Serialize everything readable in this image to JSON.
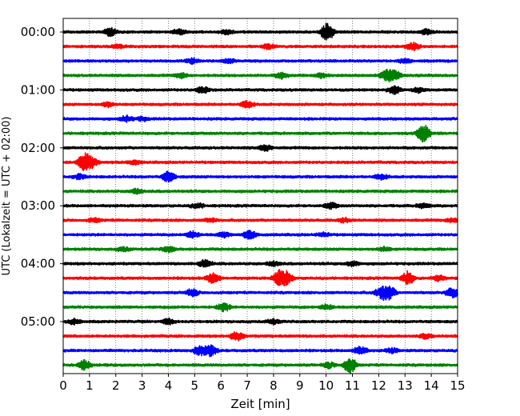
{
  "chart_data": {
    "type": "line",
    "xlabel": "Zeit  [min]",
    "ylabel": "UTC (Lokalzeit = UTC + 02:00)",
    "xlim": [
      0,
      15
    ],
    "x_ticks": [
      "0",
      "1",
      "2",
      "3",
      "4",
      "5",
      "6",
      "7",
      "8",
      "9",
      "10",
      "11",
      "12",
      "13",
      "14",
      "15"
    ],
    "y_tick_labels": [
      "00:00",
      "01:00",
      "02:00",
      "03:00",
      "04:00",
      "05:00"
    ],
    "y_tick_rows": [
      0,
      4,
      8,
      12,
      16,
      20
    ],
    "grid": "vertical-dotted",
    "colors": [
      "#000000",
      "#ff0000",
      "#0000ff",
      "#008000"
    ],
    "traces": [
      {
        "start": "00:00",
        "events": [
          [
            1.8,
            0.8
          ],
          [
            4.4,
            0.5
          ],
          [
            6.2,
            0.5
          ],
          [
            10.0,
            1.0
          ],
          [
            10.1,
            0.9
          ],
          [
            13.8,
            0.5
          ]
        ]
      },
      {
        "start": "00:15",
        "events": [
          [
            2.1,
            0.4
          ],
          [
            7.8,
            0.5
          ],
          [
            13.3,
            0.8
          ]
        ]
      },
      {
        "start": "00:30",
        "events": [
          [
            4.9,
            0.5
          ],
          [
            6.3,
            0.4
          ],
          [
            13.0,
            0.4
          ]
        ]
      },
      {
        "start": "00:45",
        "events": [
          [
            4.5,
            0.5
          ],
          [
            8.3,
            0.6
          ],
          [
            9.8,
            0.5
          ],
          [
            12.3,
            1.1
          ],
          [
            12.6,
            1.0
          ]
        ]
      },
      {
        "start": "01:00",
        "events": [
          [
            5.3,
            0.7
          ],
          [
            12.6,
            0.8
          ],
          [
            13.5,
            0.5
          ]
        ]
      },
      {
        "start": "01:15",
        "events": [
          [
            1.7,
            0.5
          ],
          [
            7.0,
            0.7
          ]
        ]
      },
      {
        "start": "01:30",
        "events": [
          [
            2.4,
            0.6
          ],
          [
            3.0,
            0.4
          ]
        ]
      },
      {
        "start": "01:45",
        "events": [
          [
            13.7,
            2.0
          ]
        ]
      },
      {
        "start": "02:00",
        "events": [
          [
            7.7,
            0.6
          ]
        ]
      },
      {
        "start": "02:15",
        "events": [
          [
            0.8,
            1.9
          ],
          [
            1.1,
            0.9
          ],
          [
            2.7,
            0.4
          ]
        ]
      },
      {
        "start": "02:30",
        "events": [
          [
            0.6,
            0.5
          ],
          [
            4.0,
            1.1
          ],
          [
            12.1,
            0.5
          ]
        ]
      },
      {
        "start": "02:45",
        "events": [
          [
            2.8,
            0.5
          ]
        ]
      },
      {
        "start": "03:00",
        "events": [
          [
            5.1,
            0.5
          ],
          [
            10.2,
            0.6
          ],
          [
            13.7,
            0.5
          ]
        ]
      },
      {
        "start": "03:15",
        "events": [
          [
            1.2,
            0.4
          ],
          [
            5.6,
            0.4
          ],
          [
            10.7,
            0.4
          ],
          [
            14.8,
            0.4
          ]
        ]
      },
      {
        "start": "03:30",
        "events": [
          [
            4.9,
            0.7
          ],
          [
            6.1,
            0.5
          ],
          [
            7.1,
            0.9
          ],
          [
            9.9,
            0.4
          ]
        ]
      },
      {
        "start": "03:45",
        "events": [
          [
            2.3,
            0.4
          ],
          [
            4.0,
            0.6
          ],
          [
            12.2,
            0.4
          ]
        ]
      },
      {
        "start": "04:00",
        "events": [
          [
            5.4,
            0.8
          ],
          [
            8.0,
            0.5
          ],
          [
            11.0,
            0.5
          ]
        ]
      },
      {
        "start": "04:15",
        "events": [
          [
            5.7,
            1.2
          ],
          [
            8.2,
            1.4
          ],
          [
            8.5,
            1.2
          ],
          [
            13.1,
            1.4
          ],
          [
            14.3,
            0.6
          ]
        ]
      },
      {
        "start": "04:30",
        "events": [
          [
            4.9,
            0.8
          ],
          [
            12.1,
            1.2
          ],
          [
            12.4,
            1.4
          ],
          [
            14.8,
            1.1
          ]
        ]
      },
      {
        "start": "04:45",
        "events": [
          [
            6.1,
            0.9
          ],
          [
            10.0,
            0.5
          ]
        ]
      },
      {
        "start": "05:00",
        "events": [
          [
            0.4,
            0.5
          ],
          [
            4.0,
            0.6
          ],
          [
            8.0,
            0.5
          ]
        ]
      },
      {
        "start": "05:15",
        "events": [
          [
            6.6,
            1.0
          ],
          [
            13.8,
            0.5
          ]
        ]
      },
      {
        "start": "05:30",
        "events": [
          [
            5.2,
            1.0
          ],
          [
            5.6,
            1.1
          ],
          [
            11.3,
            0.9
          ],
          [
            12.5,
            0.5
          ]
        ]
      },
      {
        "start": "05:45",
        "events": [
          [
            0.8,
            1.0
          ],
          [
            10.1,
            0.6
          ],
          [
            10.9,
            1.7
          ]
        ]
      }
    ]
  }
}
